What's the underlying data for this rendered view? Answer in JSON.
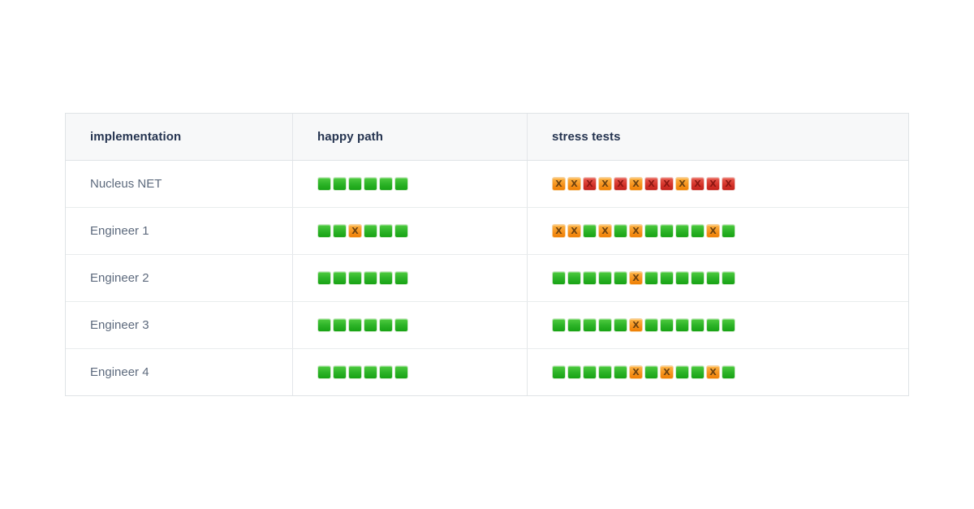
{
  "table": {
    "headers": [
      {
        "label": "implementation"
      },
      {
        "label": "happy path"
      },
      {
        "label": "stress tests"
      }
    ],
    "legend": {
      "pass": {
        "name": "pass-icon",
        "symbol": "",
        "color": "#2bb226"
      },
      "fail_warn": {
        "name": "fail-warn-icon",
        "symbol": "X",
        "color": "#f6941f"
      },
      "fail_error": {
        "name": "fail-error-icon",
        "symbol": "X",
        "color": "#d4342b"
      }
    },
    "rows": [
      {
        "implementation": "Nucleus NET",
        "happy_path": [
          "g",
          "g",
          "g",
          "g",
          "g",
          "g"
        ],
        "stress_tests": [
          "ox",
          "ox",
          "rx",
          "ox",
          "rx",
          "ox",
          "rx",
          "rx",
          "ox",
          "rx",
          "rx",
          "rx"
        ]
      },
      {
        "implementation": "Engineer 1",
        "happy_path": [
          "g",
          "g",
          "ox",
          "g",
          "g",
          "g"
        ],
        "stress_tests": [
          "ox",
          "ox",
          "g",
          "ox",
          "g",
          "ox",
          "g",
          "g",
          "g",
          "g",
          "ox",
          "g"
        ]
      },
      {
        "implementation": "Engineer 2",
        "happy_path": [
          "g",
          "g",
          "g",
          "g",
          "g",
          "g"
        ],
        "stress_tests": [
          "g",
          "g",
          "g",
          "g",
          "g",
          "ox",
          "g",
          "g",
          "g",
          "g",
          "g",
          "g"
        ]
      },
      {
        "implementation": "Engineer 3",
        "happy_path": [
          "g",
          "g",
          "g",
          "g",
          "g",
          "g"
        ],
        "stress_tests": [
          "g",
          "g",
          "g",
          "g",
          "g",
          "ox",
          "g",
          "g",
          "g",
          "g",
          "g",
          "g"
        ]
      },
      {
        "implementation": "Engineer 4",
        "happy_path": [
          "g",
          "g",
          "g",
          "g",
          "g",
          "g"
        ],
        "stress_tests": [
          "g",
          "g",
          "g",
          "g",
          "g",
          "ox",
          "g",
          "ox",
          "g",
          "g",
          "ox",
          "g"
        ]
      }
    ]
  }
}
